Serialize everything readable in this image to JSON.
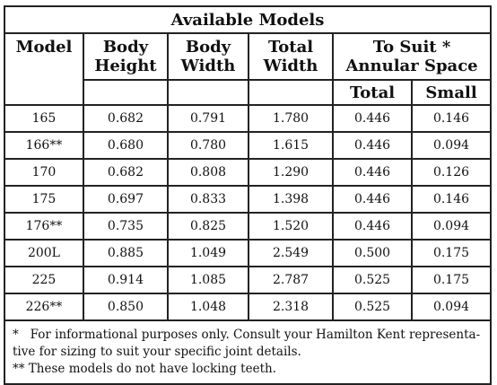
{
  "table": {
    "title": "Available Models",
    "headers": {
      "model": "Model",
      "body_height": [
        "Body",
        "Height"
      ],
      "body_width": [
        "Body",
        "Width"
      ],
      "total_width": [
        "Total",
        "Width"
      ],
      "to_suit": [
        "To Suit *",
        "Annular Space"
      ],
      "sub_total": "Total",
      "sub_small": "Small"
    },
    "rows": [
      [
        "165",
        "0.682",
        "0.791",
        "1.780",
        "0.446",
        "0.146"
      ],
      [
        "166**",
        "0.680",
        "0.780",
        "1.615",
        "0.446",
        "0.094"
      ],
      [
        "170",
        "0.682",
        "0.808",
        "1.290",
        "0.446",
        "0.126"
      ],
      [
        "175",
        "0.697",
        "0.833",
        "1.398",
        "0.446",
        "0.146"
      ],
      [
        "176**",
        "0.735",
        "0.825",
        "1.520",
        "0.446",
        "0.094"
      ],
      [
        "200L",
        "0.885",
        "1.049",
        "2.549",
        "0.500",
        "0.175"
      ],
      [
        "225",
        "0.914",
        "1.085",
        "2.787",
        "0.525",
        "0.175"
      ],
      [
        "226**",
        "0.850",
        "1.048",
        "2.318",
        "0.525",
        "0.094"
      ]
    ]
  },
  "footnotes": {
    "line1": "*   For informational purposes only. Consult your Hamilton Kent representa-",
    "line2": "tive for sizing to suit your specific joint details.",
    "line3": "** These models do not have locking teeth."
  }
}
